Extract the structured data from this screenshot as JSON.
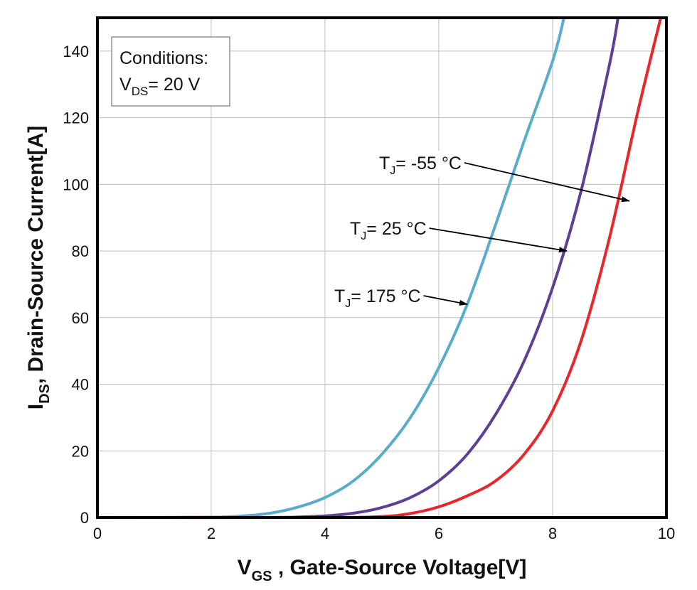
{
  "chart_data": {
    "type": "line",
    "title": "",
    "xlabel": {
      "main": "V",
      "sub": "GS",
      "rest": " , Gate-Source Voltage[V]"
    },
    "ylabel": {
      "main": "I",
      "sub": "DS",
      "rest": ", Drain-Source Current[A]"
    },
    "xlim": [
      0,
      10
    ],
    "ylim": [
      0,
      150
    ],
    "x_ticks": [
      0,
      2,
      4,
      6,
      8,
      10
    ],
    "y_ticks": [
      0,
      20,
      40,
      60,
      80,
      100,
      120,
      140
    ],
    "grid": true,
    "conditions": {
      "line1": "Conditions:",
      "var_main": "V",
      "var_sub": "DS",
      "value": "= 20 V"
    },
    "series": [
      {
        "name": "T_J = 175 °C",
        "color": "#5aaccb",
        "points": [
          [
            0,
            0
          ],
          [
            2,
            0.1
          ],
          [
            2.5,
            0.4
          ],
          [
            3,
            1.2
          ],
          [
            3.5,
            3
          ],
          [
            4,
            6
          ],
          [
            4.5,
            11
          ],
          [
            5,
            19
          ],
          [
            5.5,
            30
          ],
          [
            6,
            45
          ],
          [
            6.5,
            64
          ],
          [
            7,
            88
          ],
          [
            7.5,
            113
          ],
          [
            8,
            137
          ],
          [
            8.2,
            150
          ]
        ]
      },
      {
        "name": "T_J = 25 °C",
        "color": "#5d3f96",
        "points": [
          [
            0,
            0
          ],
          [
            3,
            0
          ],
          [
            4,
            0.5
          ],
          [
            4.5,
            1.3
          ],
          [
            5,
            3
          ],
          [
            5.5,
            6
          ],
          [
            6,
            11
          ],
          [
            6.5,
            19
          ],
          [
            7,
            31
          ],
          [
            7.5,
            47
          ],
          [
            8,
            69
          ],
          [
            8.5,
            98
          ],
          [
            9,
            136
          ],
          [
            9.15,
            150
          ]
        ]
      },
      {
        "name": "T_J = -55 °C",
        "color": "#e8262b",
        "points": [
          [
            0,
            0
          ],
          [
            4,
            0
          ],
          [
            5,
            0.3
          ],
          [
            5.5,
            1.2
          ],
          [
            6,
            3.2
          ],
          [
            6.5,
            6.5
          ],
          [
            7,
            11
          ],
          [
            7.5,
            19
          ],
          [
            8,
            32
          ],
          [
            8.5,
            53
          ],
          [
            9,
            84
          ],
          [
            9.5,
            122
          ],
          [
            9.9,
            150
          ]
        ]
      }
    ],
    "annotations": [
      {
        "main": "T",
        "sub": "J",
        "rest": "= -55 °C",
        "target_series": 2,
        "target": [
          9.35,
          95
        ]
      },
      {
        "main": "T",
        "sub": "J",
        "rest": "= 25 °C",
        "target_series": 1,
        "target": [
          8.25,
          80
        ]
      },
      {
        "main": "T",
        "sub": "J",
        "rest": "= 175 °C",
        "target_series": 0,
        "target": [
          6.5,
          64
        ]
      }
    ]
  }
}
